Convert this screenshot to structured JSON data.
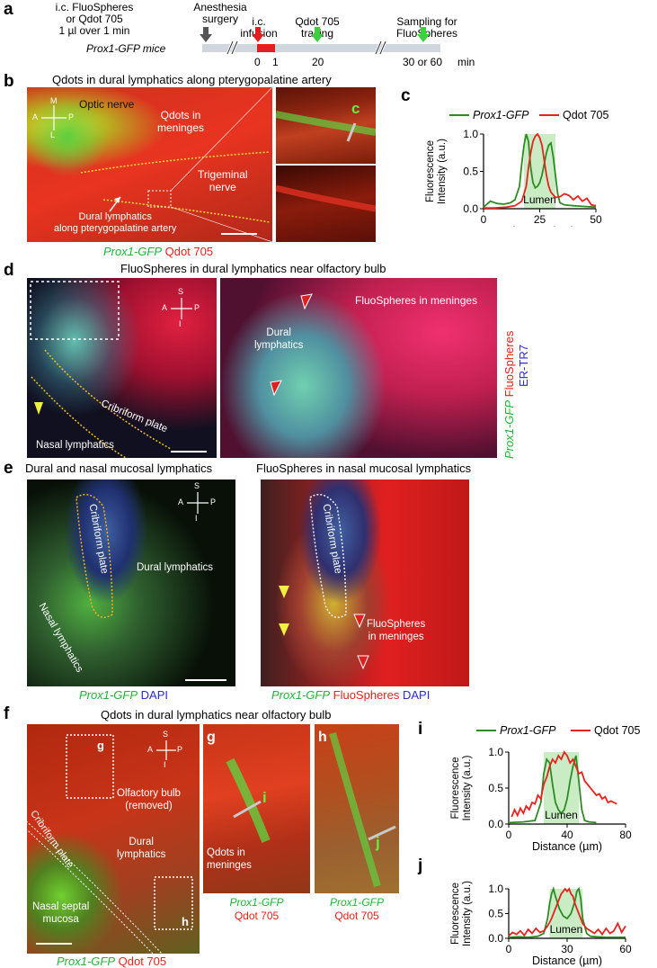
{
  "panel_letters": {
    "a": "a",
    "b": "b",
    "c": "c",
    "d": "d",
    "e": "e",
    "f": "f",
    "g": "g",
    "h": "h",
    "i": "i",
    "j": "j"
  },
  "timeline": {
    "injection": "i.c. FluoSpheres\nor Qdot 705\n1 µl over 1 min",
    "anesthesia": "Anesthesia\nsurgery",
    "infusion": "i.c.\ninfusion",
    "tracing": "Qdot 705\ntracing",
    "sampling": "Sampling for\nFluoSpheres",
    "mice": "Prox1-GFP mice",
    "t0": "0",
    "t1": "1",
    "t20": "20",
    "t30": "30 or 60",
    "unit": "min"
  },
  "panel_b": {
    "title": "Qdots in dural lymphatics along pterygopalatine artery",
    "optic_nerve": "Optic nerve",
    "qdots_meninges": "Qdots in\nmeninges",
    "trigeminal": "Trigeminal\nnerve",
    "dural": "Dural lymphatics\nalong pterygopalatine artery",
    "compass": {
      "M": "M",
      "L": "L",
      "A": "A",
      "P": "P"
    },
    "inset_label": "c",
    "caption_green": "Prox1-GFP",
    "caption_red": "Qdot 705"
  },
  "panel_d": {
    "title": "FluoSpheres in dural lymphatics near olfactory bulb",
    "compass": {
      "S": "S",
      "I": "I",
      "A": "A",
      "P": "P"
    },
    "cribriform": "Cribriform plate",
    "nasal": "Nasal lymphatics",
    "dural": "Dural\nlymphatics",
    "fluo_meninges": "FluoSpheres in meninges",
    "side_green": "Prox1-GFP",
    "side_red": "FluoSpheres",
    "side_blue": "ER-TR7"
  },
  "panel_e": {
    "title_left": "Dural and nasal mucosal lymphatics",
    "title_right": "FluoSpheres in nasal mucosal lymphatics",
    "compass": {
      "S": "S",
      "I": "I",
      "A": "A",
      "P": "P"
    },
    "cribriform": "Cribriform plate",
    "dural": "Dural lymphatics",
    "nasal": "Nasal lymphatics",
    "fluo_meninges": "FluoSpheres\nin meninges",
    "cap_left_green": "Prox1-GFP",
    "cap_left_blue": "DAPI",
    "cap_right_green": "Prox1-GFP",
    "cap_right_red": "FluoSpheres",
    "cap_right_blue": "DAPI"
  },
  "panel_f": {
    "title": "Qdots in dural lymphatics near olfactory bulb",
    "compass": {
      "S": "S",
      "I": "I",
      "A": "A",
      "P": "P"
    },
    "olfactory": "Olfactory bulb\n(removed)",
    "dural": "Dural\nlymphatics",
    "cribriform": "Cribriform plate",
    "nasal_septal": "Nasal septal\nmucosa",
    "box_g": "g",
    "box_h": "h",
    "g_line": "i",
    "h_line": "j",
    "qdots_meninges": "Qdots in\nmeninges",
    "cap_green": "Prox1-GFP",
    "cap_red": "Qdot 705"
  },
  "legend": {
    "green_name": "Prox1-GFP",
    "red_name": "Qdot 705",
    "lumen": "Lumen"
  },
  "colors": {
    "green": "#2e8b24",
    "red": "#e8221e",
    "lumen_fill": "#c9ecc4"
  },
  "chart_data": [
    {
      "id": "c",
      "type": "line",
      "ylabel": "Fluorescence\nIntensity (a.u.)",
      "xlabel": "Distance (µm)",
      "xlim": [
        0,
        50
      ],
      "ylim": [
        0,
        1.0
      ],
      "xticks": [
        "0",
        "25",
        "50"
      ],
      "yticks": [
        "0.0",
        "0.5",
        "1.0"
      ],
      "lumen_range": [
        18,
        32
      ],
      "series": [
        {
          "name": "Prox1-GFP",
          "x": [
            0,
            3,
            6,
            9,
            12,
            14,
            16,
            17,
            18,
            19,
            20,
            21,
            22,
            23,
            24,
            25,
            26,
            27,
            28,
            29,
            30,
            31,
            32,
            33,
            34,
            36,
            40,
            45,
            50
          ],
          "y": [
            0.02,
            0.1,
            0.07,
            0.06,
            0.08,
            0.12,
            0.3,
            0.6,
            0.85,
            1.0,
            0.9,
            0.55,
            0.35,
            0.28,
            0.3,
            0.35,
            0.45,
            0.6,
            0.75,
            0.85,
            0.88,
            0.7,
            0.45,
            0.2,
            0.08,
            0.05,
            0.04,
            0.03,
            0.02
          ]
        },
        {
          "name": "Qdot 705",
          "x": [
            0,
            5,
            10,
            14,
            17,
            19,
            20,
            21,
            22,
            23,
            24,
            25,
            26,
            27,
            28,
            29,
            30,
            32,
            34,
            36,
            38,
            40,
            42,
            44,
            46,
            48,
            50
          ],
          "y": [
            0.01,
            0.01,
            0.02,
            0.04,
            0.1,
            0.3,
            0.55,
            0.75,
            0.9,
            0.97,
            1.0,
            0.95,
            0.85,
            0.65,
            0.45,
            0.3,
            0.22,
            0.15,
            0.16,
            0.2,
            0.18,
            0.12,
            0.17,
            0.1,
            0.14,
            0.05,
            0.04
          ]
        }
      ]
    },
    {
      "id": "i",
      "type": "line",
      "ylabel": "Fluorescence\nIntensity (a.u.)",
      "xlabel": "Distance (µm)",
      "xlim": [
        0,
        80
      ],
      "ylim": [
        0,
        1.0
      ],
      "xticks": [
        "0",
        "40",
        "80"
      ],
      "yticks": [
        "0.0",
        "0.5",
        "1.0"
      ],
      "lumen_range": [
        24,
        48
      ],
      "series": [
        {
          "name": "Prox1-GFP",
          "x": [
            0,
            10,
            18,
            22,
            24,
            26,
            28,
            30,
            32,
            34,
            36,
            38,
            40,
            42,
            44,
            46,
            48,
            50,
            52,
            55,
            60
          ],
          "y": [
            0.02,
            0.03,
            0.05,
            0.3,
            0.7,
            0.9,
            0.85,
            0.55,
            0.3,
            0.2,
            0.15,
            0.2,
            0.35,
            0.6,
            0.8,
            0.95,
            0.6,
            0.2,
            0.05,
            0.03,
            0.02
          ]
        },
        {
          "name": "Qdot 705",
          "x": [
            2,
            4,
            6,
            8,
            10,
            12,
            14,
            16,
            18,
            20,
            22,
            24,
            26,
            28,
            30,
            32,
            34,
            36,
            38,
            40,
            42,
            44,
            46,
            48,
            50,
            52,
            54,
            56,
            58,
            60,
            62,
            64,
            66,
            68,
            70,
            72,
            74
          ],
          "y": [
            0.1,
            0.2,
            0.12,
            0.22,
            0.15,
            0.25,
            0.2,
            0.3,
            0.28,
            0.4,
            0.35,
            0.55,
            0.65,
            0.8,
            0.9,
            0.85,
            0.95,
            0.9,
            1.0,
            0.95,
            0.85,
            0.9,
            0.8,
            0.7,
            0.72,
            0.6,
            0.55,
            0.5,
            0.45,
            0.4,
            0.42,
            0.35,
            0.38,
            0.3,
            0.32,
            0.3,
            0.28
          ]
        }
      ]
    },
    {
      "id": "j",
      "type": "line",
      "ylabel": "Fluorescence\nIntensity (a.u.)",
      "xlabel": "Distance (µm)",
      "xlim": [
        0,
        60
      ],
      "ylim": [
        0,
        1.0
      ],
      "xticks": [
        "0",
        "30",
        "60"
      ],
      "yticks": [
        "0.0",
        "0.5",
        "1.0"
      ],
      "lumen_range": [
        21,
        38
      ],
      "series": [
        {
          "name": "Prox1-GFP",
          "x": [
            0,
            5,
            10,
            15,
            18,
            20,
            21,
            22,
            23,
            24,
            26,
            28,
            30,
            32,
            34,
            35,
            36,
            37,
            38,
            40,
            42,
            45,
            50,
            55,
            60
          ],
          "y": [
            0.02,
            0.03,
            0.02,
            0.04,
            0.1,
            0.4,
            0.7,
            0.9,
            1.0,
            0.85,
            0.6,
            0.45,
            0.4,
            0.5,
            0.75,
            0.95,
            1.0,
            0.8,
            0.4,
            0.1,
            0.04,
            0.03,
            0.02,
            0.02,
            0.02
          ]
        },
        {
          "name": "Qdot 705",
          "x": [
            0,
            2,
            4,
            6,
            8,
            10,
            12,
            14,
            16,
            18,
            20,
            22,
            24,
            26,
            27,
            28,
            29,
            30,
            31,
            32,
            33,
            34,
            36,
            38,
            40,
            42,
            44,
            46,
            48,
            50,
            52,
            54,
            56,
            58,
            60
          ],
          "y": [
            0.05,
            0.12,
            0.08,
            0.15,
            0.06,
            0.18,
            0.1,
            0.2,
            0.12,
            0.15,
            0.25,
            0.4,
            0.6,
            0.8,
            0.9,
            0.95,
            1.0,
            0.95,
            1.0,
            0.9,
            0.85,
            0.7,
            0.5,
            0.3,
            0.2,
            0.15,
            0.1,
            0.18,
            0.08,
            0.2,
            0.1,
            0.15,
            0.3,
            0.12,
            0.25
          ]
        }
      ]
    }
  ]
}
